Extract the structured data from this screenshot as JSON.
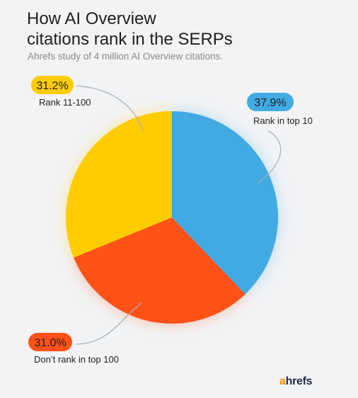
{
  "title_line1": "How AI Overview",
  "title_line2": "citations rank in the SERPs",
  "subtitle": "Ahrefs study of 4 million AI Overview citations.",
  "logo": {
    "accent": "a",
    "rest": "hrefs"
  },
  "chart_data": {
    "type": "pie",
    "title": "How AI Overview citations rank in the SERPs",
    "subtitle": "Ahrefs study of 4 million AI Overview citations.",
    "slices": [
      {
        "label": "Rank in top 10",
        "value": 37.9,
        "value_label": "37.9%",
        "color": "#42aae3"
      },
      {
        "label": "Don’t rank in top 100",
        "value": 31.0,
        "value_label": "31.0%",
        "color": "#ff5217"
      },
      {
        "label": "Rank 11-100",
        "value": 31.2,
        "value_label": "31.2%",
        "color": "#ffcc00"
      }
    ]
  }
}
